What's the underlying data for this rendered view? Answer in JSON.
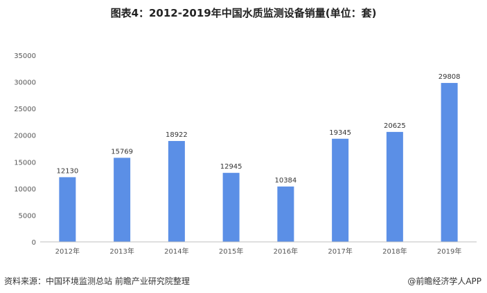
{
  "title": "图表4：2012-2019年中国水质监测设备销量(单位：套)",
  "source": "资料来源：中国环境监测总站 前瞻产业研究院整理",
  "credit": "@前瞻经济学人APP",
  "colors": {
    "bar": "#5B8FE6",
    "axis": "#BFBFBF"
  },
  "chart_data": {
    "type": "bar",
    "title": "图表4：2012-2019年中国水质监测设备销量(单位：套)",
    "xlabel": "",
    "ylabel": "",
    "ylim": [
      0,
      35000
    ],
    "yticks": [
      "0",
      "5000",
      "10000",
      "15000",
      "20000",
      "25000",
      "30000",
      "35000"
    ],
    "categories": [
      "2012年",
      "2013年",
      "2014年",
      "2015年",
      "2016年",
      "2017年",
      "2018年",
      "2019年"
    ],
    "values": [
      12130,
      15769,
      18922,
      12945,
      10384,
      19345,
      20625,
      29808
    ],
    "grid": false,
    "legend": "none"
  }
}
